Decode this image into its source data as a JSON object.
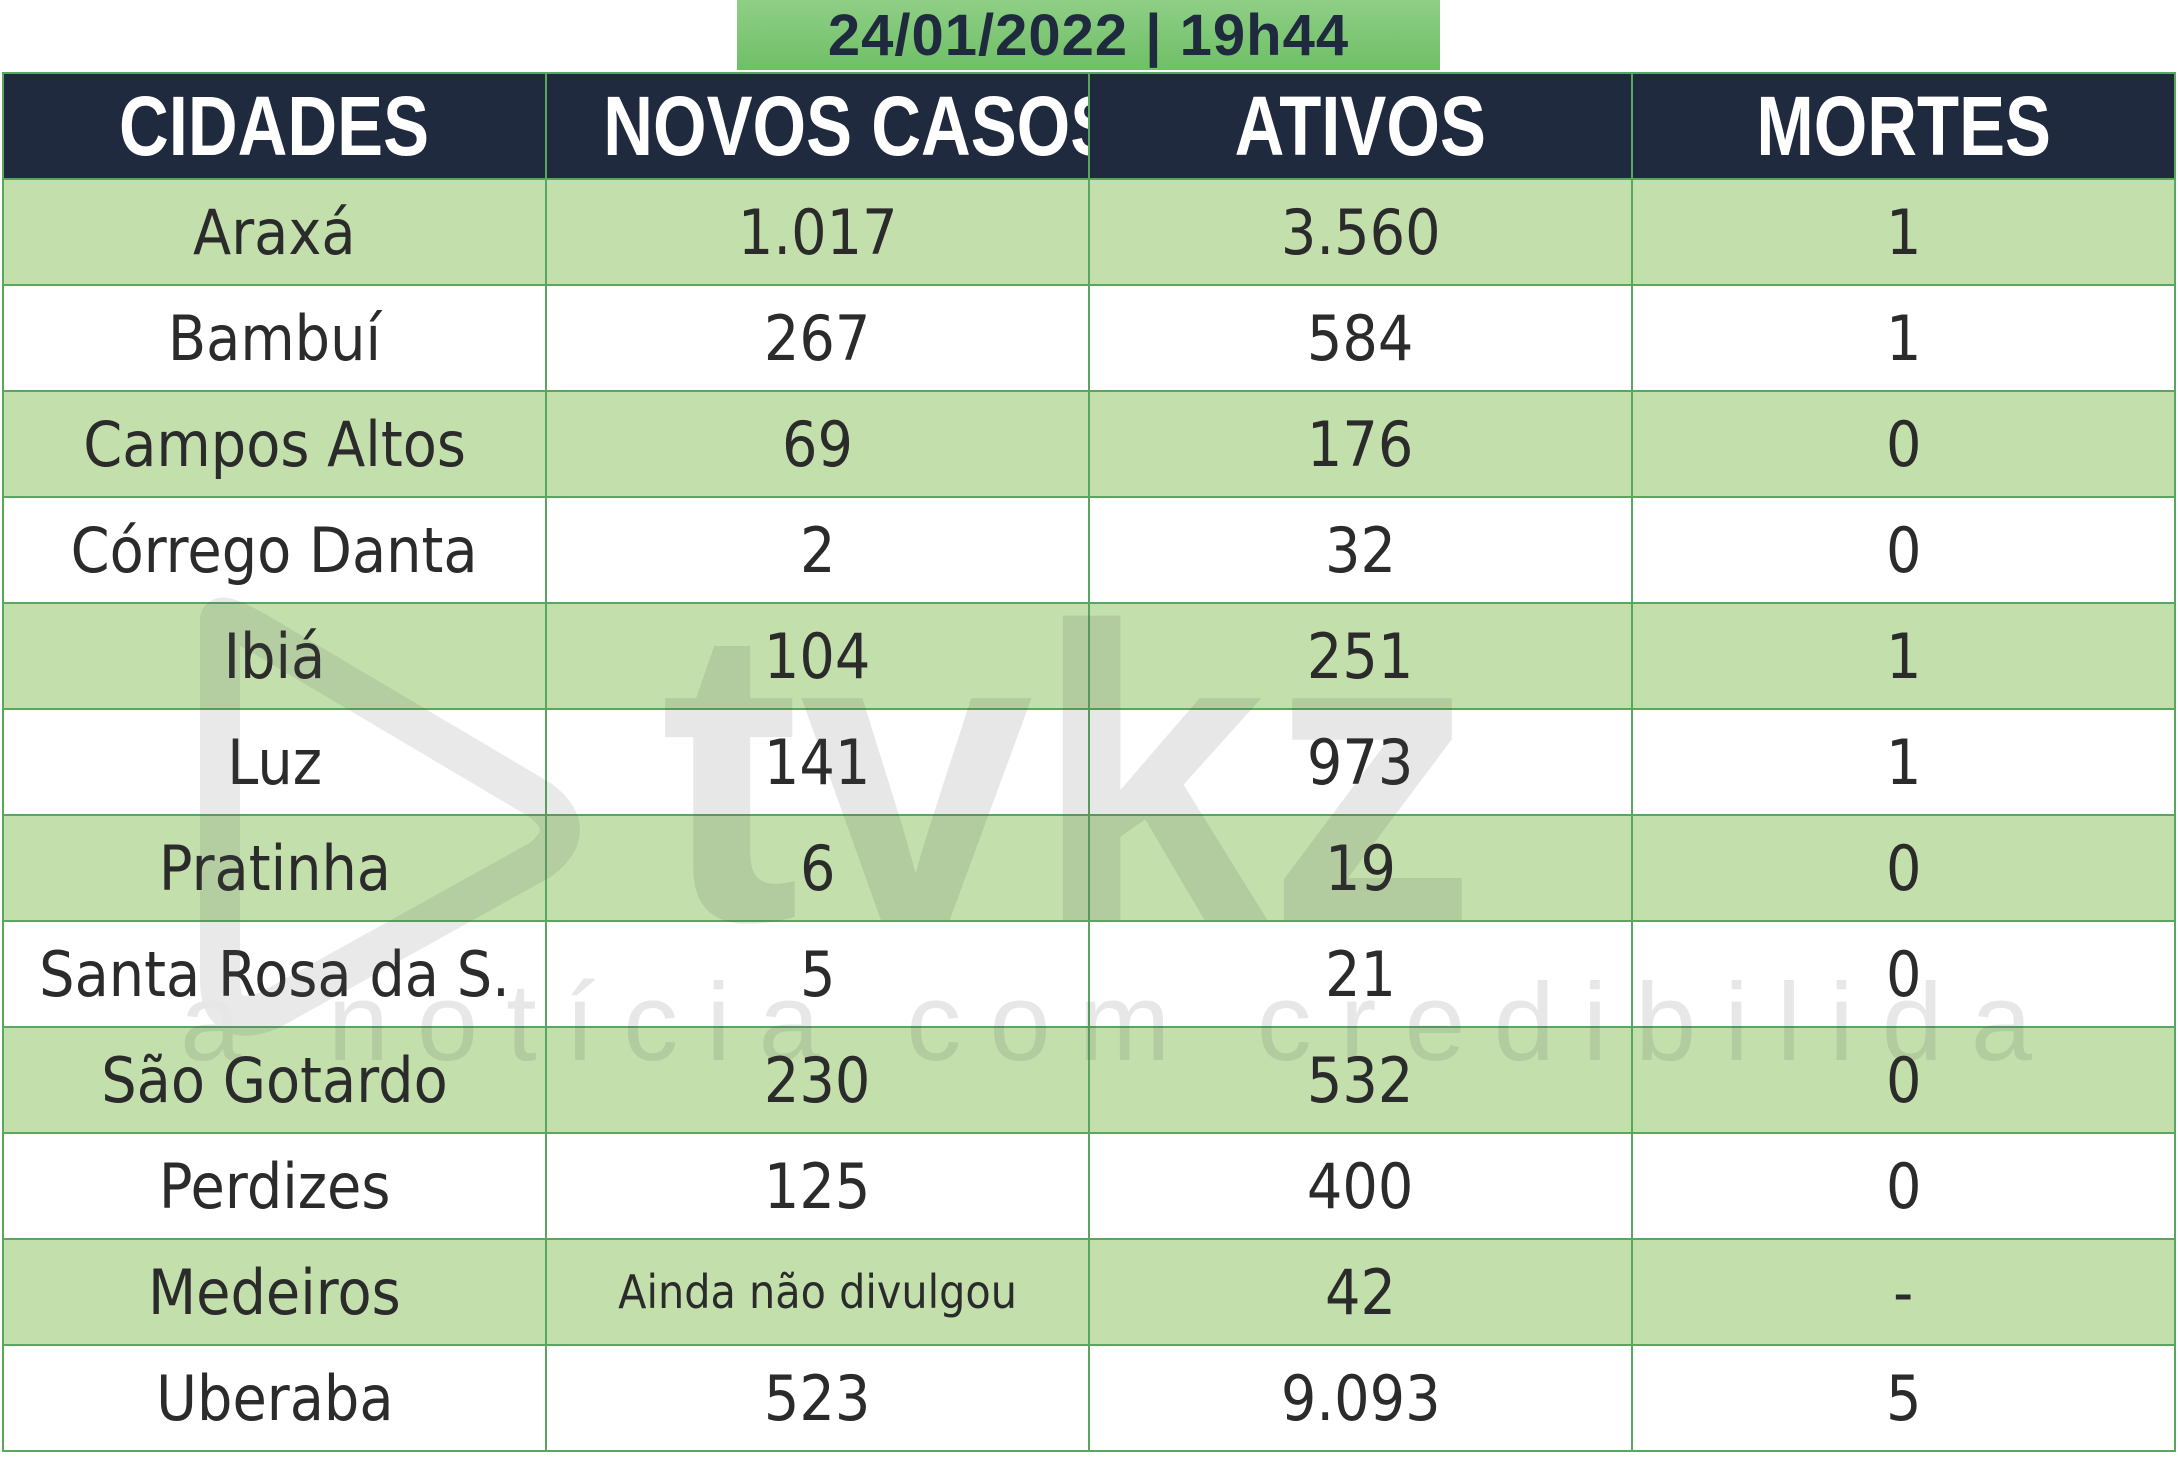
{
  "header": {
    "date_time": "24/01/2022 | 19h44"
  },
  "table": {
    "columns": [
      "CIDADES",
      "NOVOS CASOS",
      "ATIVOS",
      "MORTES"
    ],
    "rows": [
      {
        "city": "Araxá",
        "new_cases": "1.017",
        "active": "3.560",
        "deaths": "1"
      },
      {
        "city": "Bambuí",
        "new_cases": "267",
        "active": "584",
        "deaths": "1"
      },
      {
        "city": "Campos Altos",
        "new_cases": "69",
        "active": "176",
        "deaths": "0"
      },
      {
        "city": "Córrego Danta",
        "new_cases": "2",
        "active": "32",
        "deaths": "0"
      },
      {
        "city": "Ibiá",
        "new_cases": "104",
        "active": "251",
        "deaths": "1"
      },
      {
        "city": "Luz",
        "new_cases": "141",
        "active": "973",
        "deaths": "1"
      },
      {
        "city": "Pratinha",
        "new_cases": "6",
        "active": "19",
        "deaths": "0"
      },
      {
        "city": "Santa Rosa da S.",
        "new_cases": "5",
        "active": "21",
        "deaths": "0"
      },
      {
        "city": "São Gotardo",
        "new_cases": "230",
        "active": "532",
        "deaths": "0"
      },
      {
        "city": "Perdizes",
        "new_cases": "125",
        "active": "400",
        "deaths": "0"
      },
      {
        "city": "Medeiros",
        "new_cases": "Ainda não divulgou",
        "active": "42",
        "deaths": "-"
      },
      {
        "city": "Uberaba",
        "new_cases": "523",
        "active": "9.093",
        "deaths": "5"
      }
    ]
  },
  "watermark": {
    "brand": "tvkz",
    "tagline": "a notícia com credibilidade"
  },
  "colors": {
    "header_bg": "#1f2a3e",
    "row_green": "#c3e0ac",
    "border": "#59a65e",
    "banner": "#7cc673"
  }
}
